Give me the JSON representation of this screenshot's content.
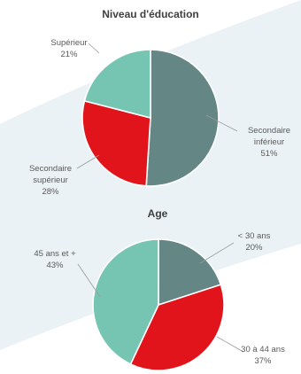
{
  "colors": {
    "background_swoosh": "#eaf2f6",
    "dark_teal": "#648786",
    "red": "#e1141b",
    "light_teal": "#76c5b3"
  },
  "chart_data": [
    {
      "type": "pie",
      "title": "Niveau d'éducation",
      "slices": [
        {
          "label_lines": [
            "Secondaire",
            "inférieur"
          ],
          "value": 51,
          "value_text": "51%",
          "color": "#648786"
        },
        {
          "label_lines": [
            "Secondaire",
            "supérieur"
          ],
          "value": 28,
          "value_text": "28%",
          "color": "#e1141b"
        },
        {
          "label_lines": [
            "Supérieur"
          ],
          "value": 21,
          "value_text": "21%",
          "color": "#76c5b3"
        }
      ]
    },
    {
      "type": "pie",
      "title": "Age",
      "slices": [
        {
          "label_lines": [
            "< 30 ans"
          ],
          "value": 20,
          "value_text": "20%",
          "color": "#648786"
        },
        {
          "label_lines": [
            "30 à 44 ans"
          ],
          "value": 37,
          "value_text": "37%",
          "color": "#e1141b"
        },
        {
          "label_lines": [
            "45 ans et +"
          ],
          "value": 43,
          "value_text": "43%",
          "color": "#76c5b3"
        }
      ]
    }
  ]
}
